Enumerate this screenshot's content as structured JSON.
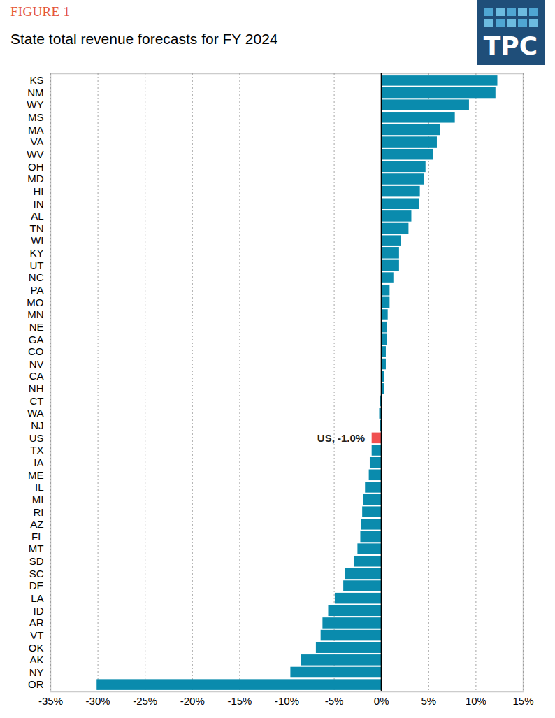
{
  "chart_data": {
    "type": "bar",
    "orientation": "horizontal",
    "figure_label": "FIGURE 1",
    "title": "State total revenue forecasts for FY 2024",
    "logo": "TPC",
    "categories": [
      "KS",
      "NM",
      "WY",
      "MS",
      "MA",
      "VA",
      "WV",
      "OH",
      "MD",
      "HI",
      "IN",
      "AL",
      "TN",
      "WI",
      "KY",
      "UT",
      "NC",
      "PA",
      "MO",
      "MN",
      "NE",
      "GA",
      "CO",
      "NV",
      "CA",
      "NH",
      "CT",
      "WA",
      "NJ",
      "US",
      "TX",
      "IA",
      "ME",
      "IL",
      "MI",
      "RI",
      "AZ",
      "FL",
      "MT",
      "SD",
      "SC",
      "DE",
      "LA",
      "ID",
      "AR",
      "VT",
      "OK",
      "AK",
      "NY",
      "OR"
    ],
    "values": [
      12.3,
      12.1,
      9.3,
      7.8,
      6.2,
      5.9,
      5.5,
      4.7,
      4.5,
      4.1,
      4.0,
      3.2,
      2.9,
      2.1,
      1.9,
      1.9,
      1.3,
      0.9,
      0.9,
      0.7,
      0.6,
      0.6,
      0.5,
      0.5,
      0.3,
      0.3,
      -0.1,
      -0.2,
      -0.1,
      -1.0,
      -1.0,
      -1.2,
      -1.3,
      -1.7,
      -1.9,
      -2.0,
      -2.1,
      -2.2,
      -2.5,
      -2.9,
      -3.8,
      -4.0,
      -4.9,
      -5.6,
      -6.2,
      -6.4,
      -6.9,
      -8.5,
      -9.6,
      -30.1
    ],
    "colors": [
      "#0a8bad",
      "#0a8bad",
      "#0a8bad",
      "#0a8bad",
      "#0a8bad",
      "#0a8bad",
      "#0a8bad",
      "#0a8bad",
      "#0a8bad",
      "#0a8bad",
      "#0a8bad",
      "#0a8bad",
      "#0a8bad",
      "#0a8bad",
      "#0a8bad",
      "#0a8bad",
      "#0a8bad",
      "#0a8bad",
      "#0a8bad",
      "#0a8bad",
      "#0a8bad",
      "#0a8bad",
      "#0a8bad",
      "#0a8bad",
      "#0a8bad",
      "#0a8bad",
      "#0a8bad",
      "#0a8bad",
      "#0a8bad",
      "#f05050",
      "#0a8bad",
      "#0a8bad",
      "#0a8bad",
      "#0a8bad",
      "#0a8bad",
      "#0a8bad",
      "#0a8bad",
      "#0a8bad",
      "#0a8bad",
      "#0a8bad",
      "#0a8bad",
      "#0a8bad",
      "#0a8bad",
      "#0a8bad",
      "#0a8bad",
      "#0a8bad",
      "#0a8bad",
      "#0a8bad",
      "#0a8bad",
      "#0a8bad"
    ],
    "annotations": [
      {
        "category": "US",
        "text": "US, -1.0%"
      }
    ],
    "xlim": [
      -35,
      15
    ],
    "xticks": [
      {
        "value": -35,
        "label": "-35%"
      },
      {
        "value": -30,
        "label": "-30%"
      },
      {
        "value": -25,
        "label": "-25%"
      },
      {
        "value": -20,
        "label": "-20%"
      },
      {
        "value": -15,
        "label": "-15%"
      },
      {
        "value": -10,
        "label": "-10%"
      },
      {
        "value": -5,
        "label": "-5%"
      },
      {
        "value": 0,
        "label": "0%"
      },
      {
        "value": 5,
        "label": "5%"
      },
      {
        "value": 10,
        "label": "10%"
      },
      {
        "value": 15,
        "label": "15%"
      }
    ],
    "grid": true
  }
}
